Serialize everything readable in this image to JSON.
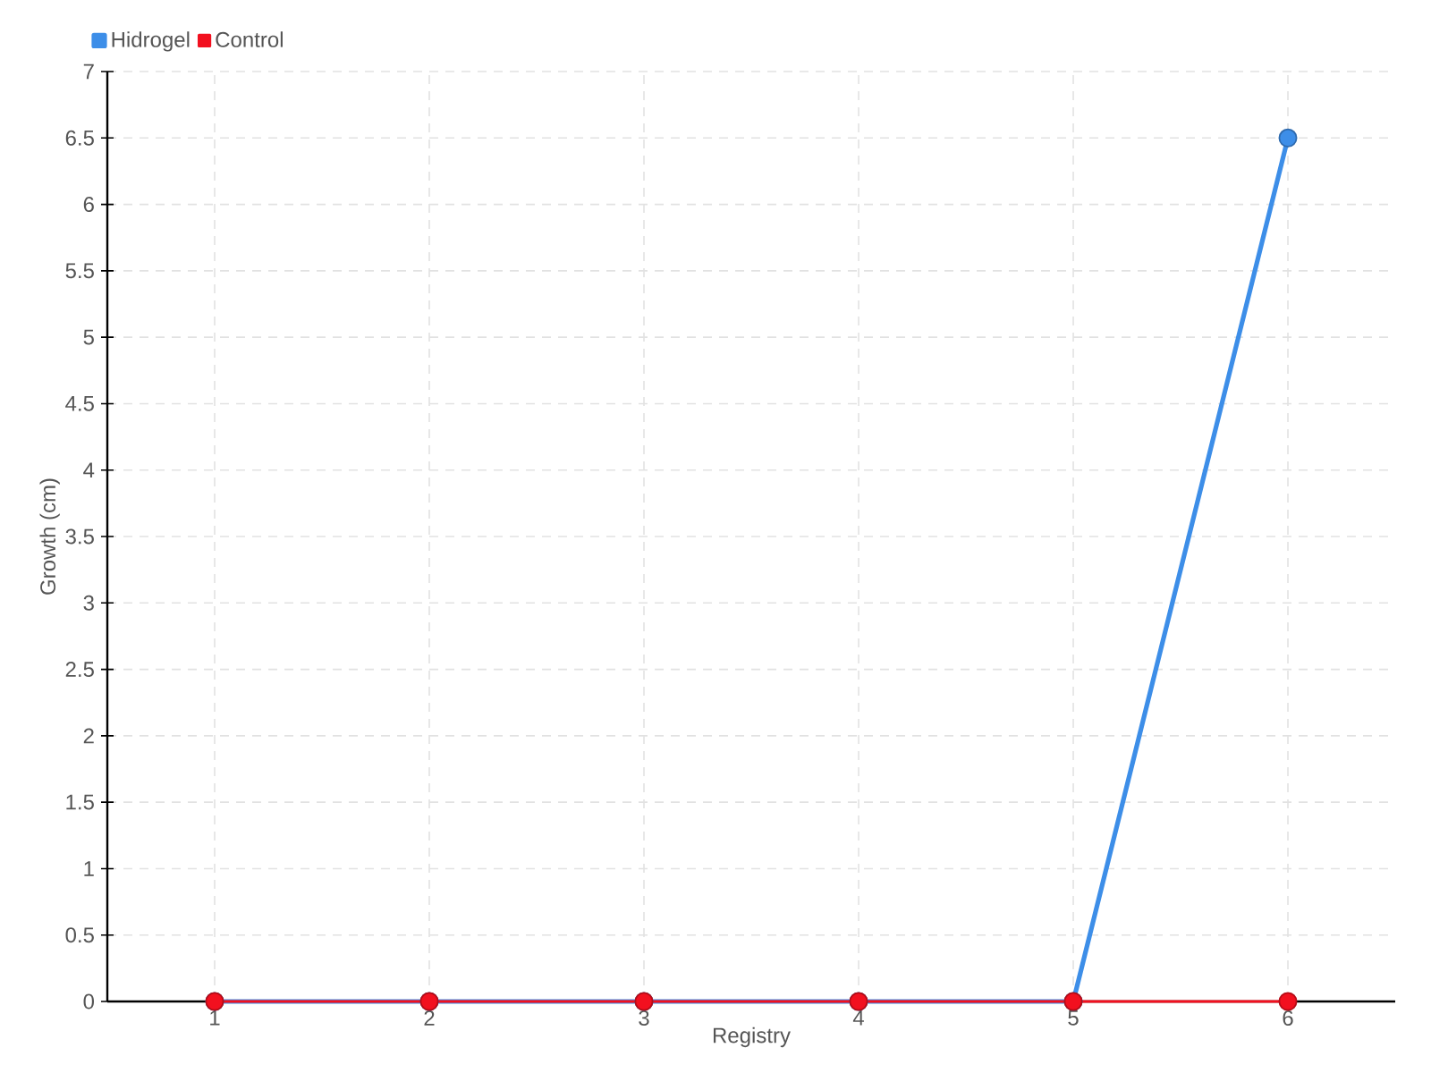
{
  "chart_data": {
    "type": "line",
    "xlabel": "Registry",
    "ylabel": "Growth (cm)",
    "categories": [
      "1",
      "2",
      "3",
      "4",
      "5",
      "6"
    ],
    "series": [
      {
        "name": "Hidrogel",
        "color": "#3d8ee8",
        "values": [
          0,
          0,
          0,
          0,
          0,
          6.5
        ]
      },
      {
        "name": "Control",
        "color": "#f2101f",
        "values": [
          0,
          0,
          0,
          0,
          0,
          0
        ]
      }
    ],
    "ylim": [
      0,
      7
    ],
    "yticks": [
      0,
      0.5,
      1,
      1.5,
      2,
      2.5,
      3,
      3.5,
      4,
      4.5,
      5,
      5.5,
      6,
      6.5,
      7
    ],
    "grid": true,
    "legend": "top left",
    "marker": "circle"
  }
}
